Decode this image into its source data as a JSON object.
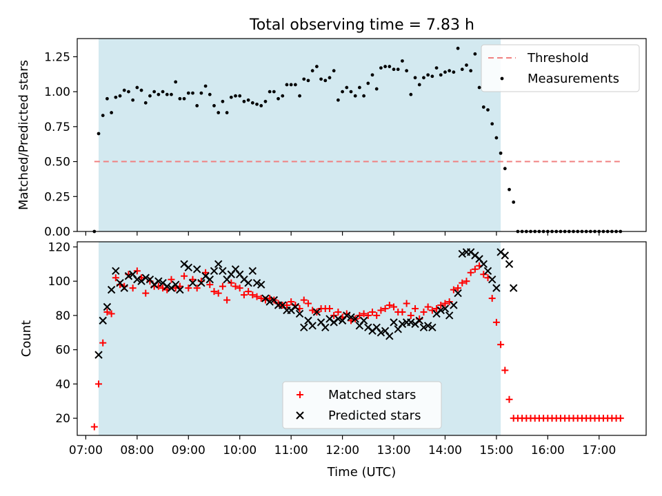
{
  "figure": {
    "title": "Total observing time = 7.83 h"
  },
  "chart_data": [
    {
      "type": "scatter",
      "panel": "top",
      "title": "Total observing time = 7.83 h",
      "ylabel": "Matched/Predicted stars",
      "xlabel": "",
      "xlim": [
        "06:50",
        "17:55"
      ],
      "ylim": [
        0,
        1.38
      ],
      "yticks": [
        "0.00",
        "0.25",
        "0.50",
        "0.75",
        "1.00",
        "1.25"
      ],
      "shaded_span": [
        "07:15",
        "15:05"
      ],
      "shade_color": "#d3e9f0",
      "threshold": {
        "name": "Threshold",
        "value": 0.5,
        "x": [
          "07:10",
          "17:25"
        ],
        "color": "#f08080"
      },
      "legend": {
        "position": "top-right",
        "entries": [
          "Threshold",
          "Measurements"
        ]
      },
      "series": [
        {
          "name": "Measurements",
          "color": "#000000",
          "x": [
            "07:10",
            "07:15",
            "07:20",
            "07:25",
            "07:30",
            "07:35",
            "07:40",
            "07:45",
            "07:50",
            "07:55",
            "08:00",
            "08:05",
            "08:10",
            "08:15",
            "08:20",
            "08:25",
            "08:30",
            "08:35",
            "08:40",
            "08:45",
            "08:50",
            "08:55",
            "09:00",
            "09:05",
            "09:10",
            "09:15",
            "09:20",
            "09:25",
            "09:30",
            "09:35",
            "09:40",
            "09:45",
            "09:50",
            "09:55",
            "10:00",
            "10:05",
            "10:10",
            "10:15",
            "10:20",
            "10:25",
            "10:30",
            "10:35",
            "10:40",
            "10:45",
            "10:50",
            "10:55",
            "11:00",
            "11:05",
            "11:10",
            "11:15",
            "11:20",
            "11:25",
            "11:30",
            "11:35",
            "11:40",
            "11:45",
            "11:50",
            "11:55",
            "12:00",
            "12:05",
            "12:10",
            "12:15",
            "12:20",
            "12:25",
            "12:30",
            "12:35",
            "12:40",
            "12:45",
            "12:50",
            "12:55",
            "13:00",
            "13:05",
            "13:10",
            "13:15",
            "13:20",
            "13:25",
            "13:30",
            "13:35",
            "13:40",
            "13:45",
            "13:50",
            "13:55",
            "14:00",
            "14:05",
            "14:10",
            "14:15",
            "14:20",
            "14:25",
            "14:30",
            "14:35",
            "14:40",
            "14:45",
            "14:50",
            "14:55",
            "15:00",
            "15:05",
            "15:10",
            "15:15",
            "15:20",
            "15:25",
            "15:30",
            "15:35",
            "15:40",
            "15:45",
            "15:50",
            "15:55",
            "16:00",
            "16:05",
            "16:10",
            "16:15",
            "16:20",
            "16:25",
            "16:30",
            "16:35",
            "16:40",
            "16:45",
            "16:50",
            "16:55",
            "17:00",
            "17:05",
            "17:10",
            "17:15",
            "17:20",
            "17:25"
          ],
          "y": [
            0.0,
            0.7,
            0.83,
            0.95,
            0.85,
            0.96,
            0.97,
            1.01,
            1.0,
            0.94,
            1.03,
            1.01,
            0.92,
            0.97,
            1.0,
            0.98,
            1.0,
            0.98,
            0.98,
            1.07,
            0.95,
            0.95,
            0.99,
            0.99,
            0.9,
            0.99,
            1.04,
            0.98,
            0.9,
            0.85,
            0.93,
            0.85,
            0.96,
            0.97,
            0.97,
            0.93,
            0.94,
            0.92,
            0.91,
            0.9,
            0.93,
            1.0,
            1.0,
            0.95,
            0.97,
            1.05,
            1.05,
            1.05,
            0.97,
            1.09,
            1.08,
            1.15,
            1.18,
            1.09,
            1.08,
            1.1,
            1.15,
            0.94,
            1.0,
            1.03,
            1.0,
            0.97,
            1.03,
            0.97,
            1.06,
            1.12,
            1.02,
            1.17,
            1.18,
            1.18,
            1.16,
            1.16,
            1.22,
            1.15,
            0.98,
            1.1,
            1.05,
            1.1,
            1.12,
            1.11,
            1.17,
            1.12,
            1.14,
            1.15,
            1.14,
            1.31,
            1.16,
            1.19,
            1.15,
            1.27,
            1.03,
            0.89,
            0.87,
            0.77,
            0.67,
            0.56,
            0.45,
            0.3,
            0.21,
            0,
            0,
            0,
            0,
            0,
            0,
            0,
            0,
            0,
            0,
            0,
            0,
            0,
            0,
            0,
            0,
            0,
            0,
            0,
            0,
            0,
            0,
            0,
            0,
            0
          ]
        }
      ]
    },
    {
      "type": "scatter",
      "panel": "bottom",
      "ylabel": "Count",
      "xlabel": "Time (UTC)",
      "xlim": [
        "06:50",
        "17:55"
      ],
      "ylim": [
        10,
        123
      ],
      "yticks": [
        "20",
        "40",
        "60",
        "80",
        "100",
        "120"
      ],
      "xticks": [
        "07:00",
        "08:00",
        "09:00",
        "10:00",
        "11:00",
        "12:00",
        "13:00",
        "14:00",
        "15:00",
        "16:00",
        "17:00"
      ],
      "shaded_span": [
        "07:15",
        "15:05"
      ],
      "legend": {
        "position": "lower-center",
        "entries": [
          "Matched stars",
          "Predicted stars"
        ]
      },
      "series": [
        {
          "name": "Matched stars",
          "marker": "+",
          "color": "#ff0000",
          "x": [
            "07:10",
            "07:15",
            "07:20",
            "07:25",
            "07:30",
            "07:35",
            "07:40",
            "07:45",
            "07:50",
            "07:55",
            "08:00",
            "08:05",
            "08:10",
            "08:15",
            "08:20",
            "08:25",
            "08:30",
            "08:35",
            "08:40",
            "08:45",
            "08:50",
            "08:55",
            "09:00",
            "09:05",
            "09:10",
            "09:15",
            "09:20",
            "09:25",
            "09:30",
            "09:35",
            "09:40",
            "09:45",
            "09:50",
            "09:55",
            "10:00",
            "10:05",
            "10:10",
            "10:15",
            "10:20",
            "10:25",
            "10:30",
            "10:35",
            "10:40",
            "10:45",
            "10:50",
            "10:55",
            "11:00",
            "11:05",
            "11:10",
            "11:15",
            "11:20",
            "11:25",
            "11:30",
            "11:35",
            "11:40",
            "11:45",
            "11:50",
            "11:55",
            "12:00",
            "12:05",
            "12:10",
            "12:15",
            "12:20",
            "12:25",
            "12:30",
            "12:35",
            "12:40",
            "12:45",
            "12:50",
            "12:55",
            "13:00",
            "13:05",
            "13:10",
            "13:15",
            "13:20",
            "13:25",
            "13:30",
            "13:35",
            "13:40",
            "13:45",
            "13:50",
            "13:55",
            "14:00",
            "14:05",
            "14:10",
            "14:15",
            "14:20",
            "14:25",
            "14:30",
            "14:35",
            "14:40",
            "14:45",
            "14:50",
            "14:55",
            "15:00",
            "15:05",
            "15:10",
            "15:15",
            "15:20",
            "15:25",
            "15:30",
            "15:35",
            "15:40",
            "15:45",
            "15:50",
            "15:55",
            "16:00",
            "16:05",
            "16:10",
            "16:15",
            "16:20",
            "16:25",
            "16:30",
            "16:35",
            "16:40",
            "16:45",
            "16:50",
            "16:55",
            "17:00",
            "17:05",
            "17:10",
            "17:15",
            "17:20",
            "17:25"
          ],
          "y": [
            15,
            40,
            64,
            82,
            81,
            102,
            98,
            97,
            104,
            96,
            106,
            102,
            93,
            100,
            97,
            97,
            96,
            95,
            101,
            96,
            97,
            103,
            96,
            101,
            96,
            100,
            105,
            98,
            94,
            93,
            97,
            89,
            99,
            97,
            96,
            92,
            94,
            92,
            91,
            90,
            89,
            90,
            89,
            87,
            86,
            86,
            88,
            86,
            84,
            89,
            87,
            83,
            82,
            84,
            84,
            84,
            80,
            82,
            79,
            81,
            77,
            78,
            80,
            81,
            80,
            82,
            80,
            83,
            84,
            86,
            85,
            82,
            82,
            87,
            80,
            84,
            78,
            82,
            85,
            83,
            84,
            86,
            87,
            88,
            95,
            96,
            99,
            100,
            105,
            107,
            109,
            104,
            102,
            90,
            76,
            63,
            48,
            31,
            20,
            20,
            20,
            20,
            20,
            20,
            20,
            20,
            20,
            20,
            20,
            20,
            20,
            20,
            20,
            20,
            20,
            20,
            20,
            20,
            20,
            20,
            20,
            20,
            20,
            20
          ]
        },
        {
          "name": "Predicted stars",
          "marker": "x",
          "color": "#000000",
          "x": [
            "07:15",
            "07:20",
            "07:25",
            "07:30",
            "07:35",
            "07:40",
            "07:45",
            "07:50",
            "07:55",
            "08:00",
            "08:05",
            "08:10",
            "08:15",
            "08:20",
            "08:25",
            "08:30",
            "08:35",
            "08:40",
            "08:45",
            "08:50",
            "08:55",
            "09:00",
            "09:05",
            "09:10",
            "09:15",
            "09:20",
            "09:25",
            "09:30",
            "09:35",
            "09:40",
            "09:45",
            "09:50",
            "09:55",
            "10:00",
            "10:05",
            "10:10",
            "10:15",
            "10:20",
            "10:25",
            "10:30",
            "10:35",
            "10:40",
            "10:45",
            "10:50",
            "10:55",
            "11:00",
            "11:05",
            "11:10",
            "11:15",
            "11:20",
            "11:25",
            "11:30",
            "11:35",
            "11:40",
            "11:45",
            "11:50",
            "11:55",
            "12:00",
            "12:05",
            "12:10",
            "12:15",
            "12:20",
            "12:25",
            "12:30",
            "12:35",
            "12:40",
            "12:45",
            "12:50",
            "12:55",
            "13:00",
            "13:05",
            "13:10",
            "13:15",
            "13:20",
            "13:25",
            "13:30",
            "13:35",
            "13:40",
            "13:45",
            "13:50",
            "13:55",
            "14:00",
            "14:05",
            "14:10",
            "14:15",
            "14:20",
            "14:25",
            "14:30",
            "14:35",
            "14:40",
            "14:45",
            "14:50",
            "14:55",
            "15:00",
            "15:05",
            "15:10",
            "15:15",
            "15:20"
          ],
          "y": [
            57,
            77,
            85,
            95,
            106,
            99,
            96,
            103,
            104,
            101,
            100,
            102,
            101,
            98,
            100,
            99,
            97,
            96,
            98,
            95,
            110,
            108,
            99,
            107,
            99,
            103,
            101,
            106,
            110,
            106,
            101,
            104,
            107,
            104,
            101,
            99,
            106,
            99,
            98,
            90,
            88,
            89,
            86,
            86,
            83,
            83,
            85,
            81,
            73,
            77,
            74,
            82,
            76,
            73,
            78,
            76,
            78,
            77,
            80,
            79,
            78,
            74,
            77,
            73,
            71,
            73,
            70,
            71,
            68,
            76,
            72,
            75,
            76,
            76,
            75,
            77,
            73,
            74,
            73,
            81,
            83,
            84,
            80,
            86,
            93,
            116,
            117,
            117,
            115,
            113,
            110,
            106,
            101,
            96,
            117,
            115,
            110,
            96
          ]
        }
      ]
    }
  ]
}
